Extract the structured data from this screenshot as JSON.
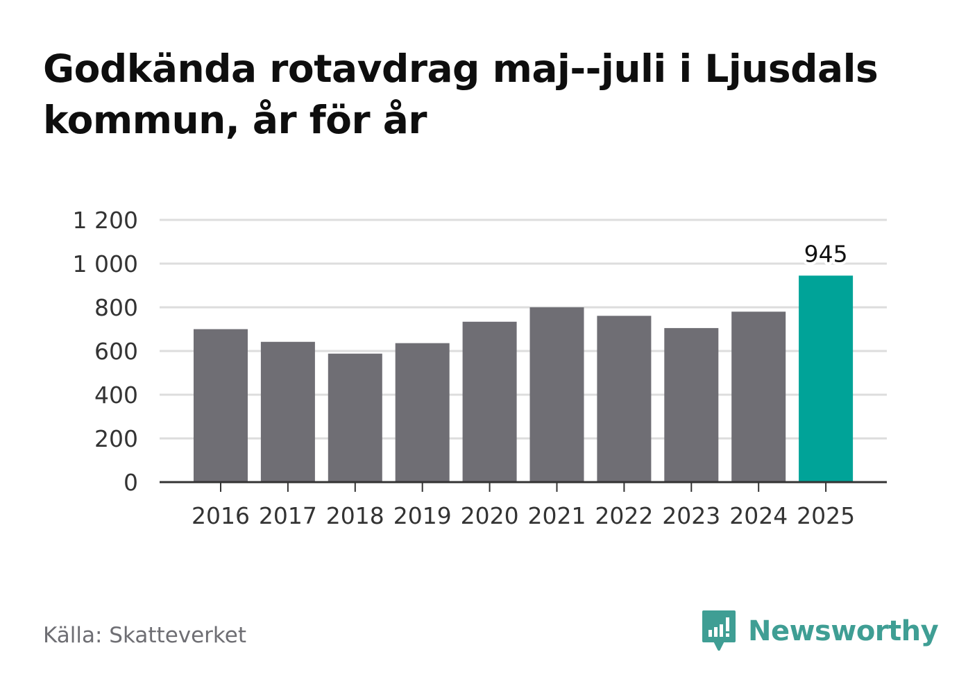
{
  "title": "Godkända rotavdrag maj--juli i Ljusdals kommun, år för år",
  "source": "Källa: Skatteverket",
  "brand": {
    "name": "Newsworthy",
    "icon": "newsworthy-logo-icon"
  },
  "colors": {
    "bar": "#6f6e74",
    "highlight": "#00a398",
    "grid": "#dddddd",
    "axis": "#333333",
    "text": "#333333",
    "brand": "#3f9e94"
  },
  "chart_data": {
    "type": "bar",
    "title": "Godkända rotavdrag maj--juli i Ljusdals kommun, år för år",
    "categories": [
      "2016",
      "2017",
      "2018",
      "2019",
      "2020",
      "2021",
      "2022",
      "2023",
      "2024",
      "2025"
    ],
    "values": [
      700,
      642,
      588,
      636,
      734,
      800,
      761,
      705,
      780,
      945
    ],
    "highlight_index": 9,
    "data_labels": [
      {
        "index": 9,
        "text": "945"
      }
    ],
    "yticks": [
      0,
      200,
      400,
      600,
      800,
      1000,
      1200
    ],
    "ytick_labels": [
      "0",
      "200",
      "400",
      "600",
      "800",
      "1 000",
      "1 200"
    ],
    "ylim": [
      0,
      1200
    ],
    "xlabel": "",
    "ylabel": "",
    "grid": true,
    "legend": "none"
  }
}
